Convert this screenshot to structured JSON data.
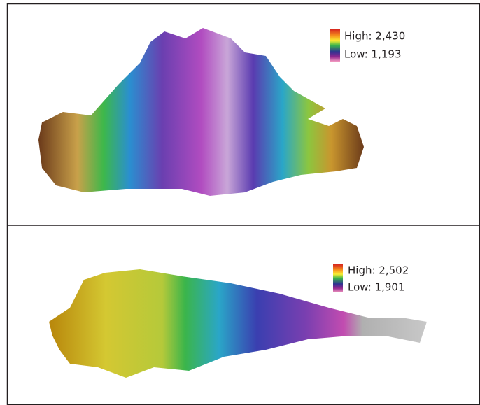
{
  "panels": [
    {
      "legend": {
        "high": "High: 2,430",
        "low": "Low: 1,193"
      }
    },
    {
      "legend": {
        "high": "High: 2,502",
        "low": "Low: 1,901"
      }
    }
  ]
}
